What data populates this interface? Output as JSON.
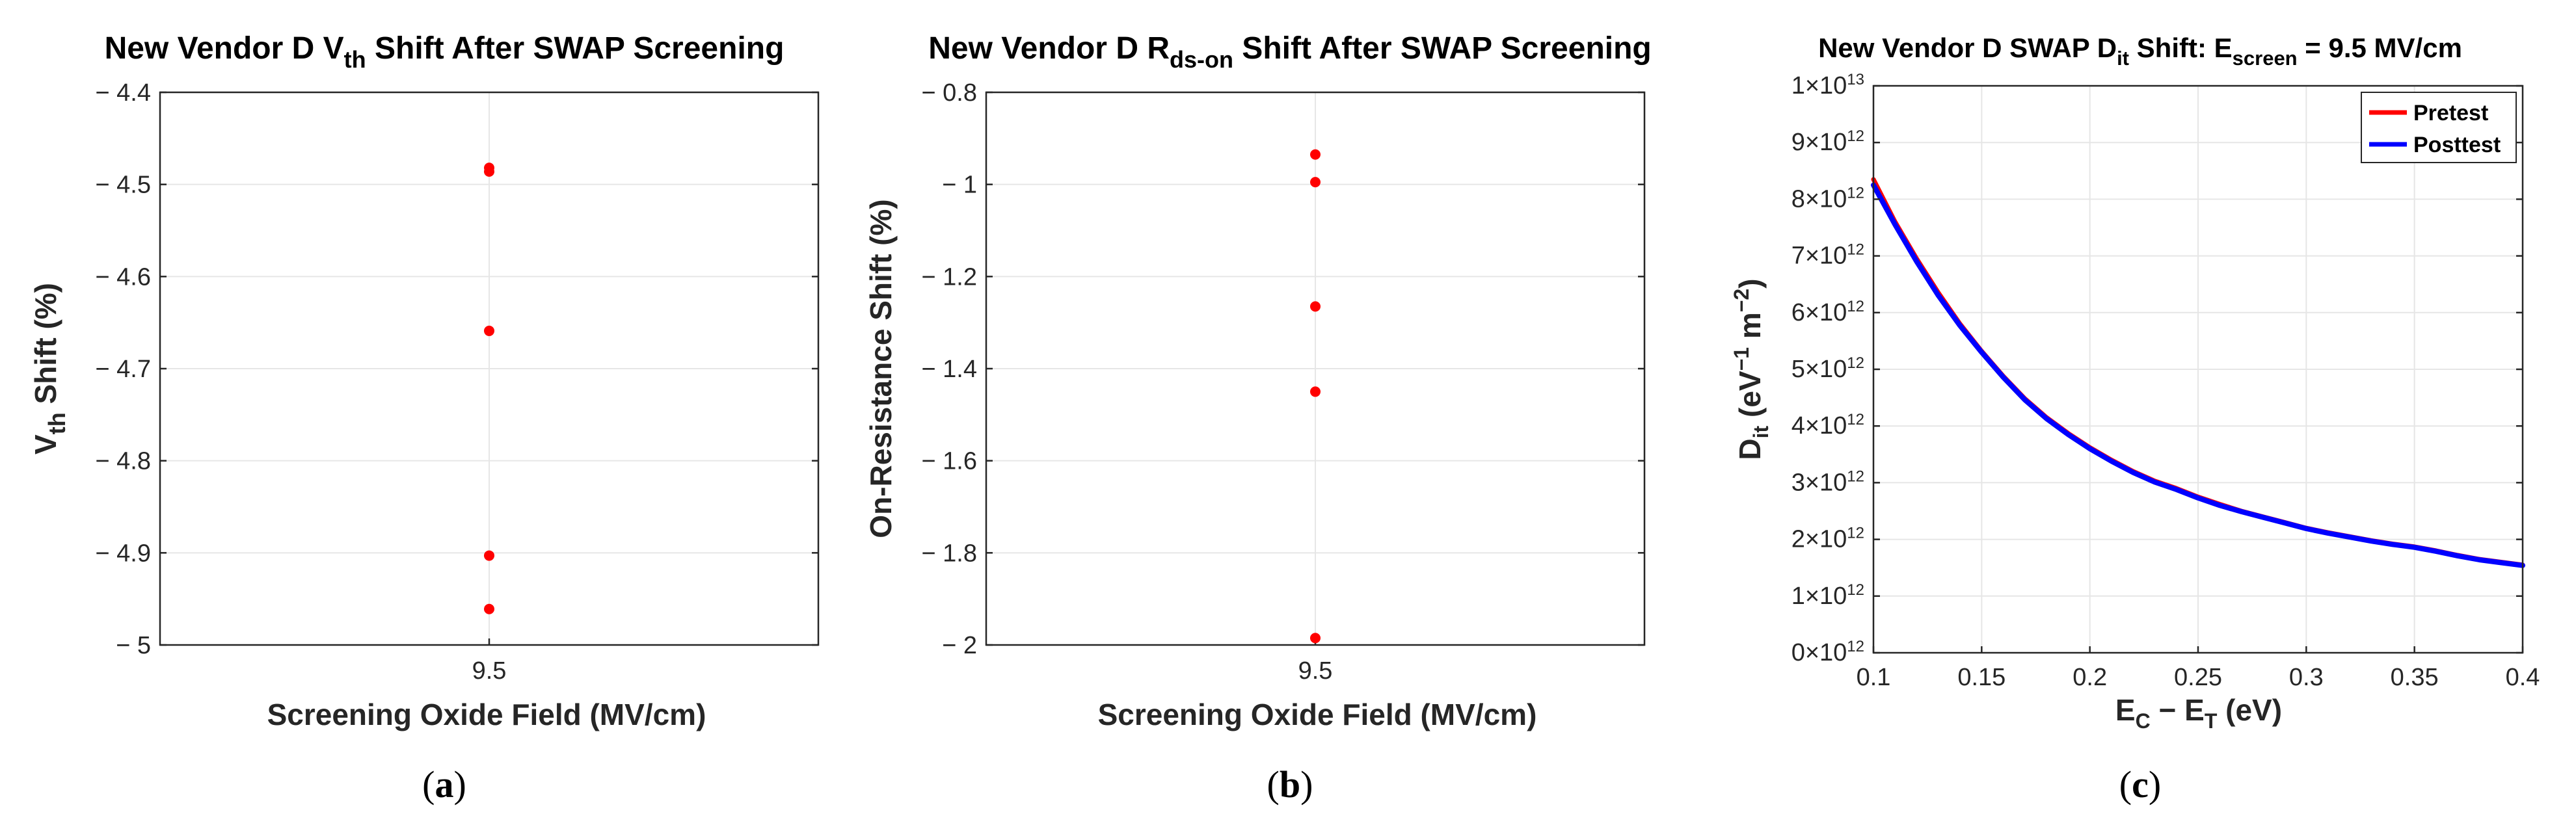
{
  "figure": {
    "captions": [
      "(a)",
      "(b)",
      "(c)"
    ]
  },
  "chart_data": [
    {
      "type": "scatter",
      "title": {
        "main": "New Vendor D V",
        "sub": "th",
        "rest": " Shift After SWAP Screening"
      },
      "xlabel": "Screening Oxide Field (MV/cm)",
      "ylabel": {
        "main": "V",
        "sub": "th",
        "rest": " Shift (%)"
      },
      "x_categories": [
        "9.5"
      ],
      "ylim": [
        -5,
        -4.4
      ],
      "yticks": [
        -4.4,
        -4.5,
        -4.6,
        -4.7,
        -4.8,
        -4.9,
        -5
      ],
      "ytick_labels": [
        "− 4.4",
        "− 4.5",
        "− 4.6",
        "− 4.7",
        "− 4.8",
        "− 4.9",
        "− 5"
      ],
      "y_inverted": true,
      "grid": true,
      "marker_color": "#ff0000",
      "points": [
        {
          "x": "9.5",
          "y": -4.482
        },
        {
          "x": "9.5",
          "y": -4.486
        },
        {
          "x": "9.5",
          "y": -4.659
        },
        {
          "x": "9.5",
          "y": -4.903
        },
        {
          "x": "9.5",
          "y": -4.961
        }
      ]
    },
    {
      "type": "scatter",
      "title": {
        "main": "New Vendor D R",
        "sub": "ds-on",
        "rest": " Shift After SWAP Screening"
      },
      "xlabel": "Screening Oxide Field (MV/cm)",
      "ylabel": {
        "main": "On-Resistance Shift (%)",
        "sub": "",
        "rest": ""
      },
      "x_categories": [
        "9.5"
      ],
      "ylim": [
        -2,
        -0.8
      ],
      "yticks": [
        -0.8,
        -1,
        -1.2,
        -1.4,
        -1.6,
        -1.8,
        -2
      ],
      "ytick_labels": [
        "− 0.8",
        "− 1",
        "− 1.2",
        "− 1.4",
        "− 1.6",
        "− 1.8",
        "− 2"
      ],
      "y_inverted": true,
      "grid": true,
      "marker_color": "#ff0000",
      "points": [
        {
          "x": "9.5",
          "y": -0.935
        },
        {
          "x": "9.5",
          "y": -0.995
        },
        {
          "x": "9.5",
          "y": -1.265
        },
        {
          "x": "9.5",
          "y": -1.45
        },
        {
          "x": "9.5",
          "y": -1.985
        }
      ]
    },
    {
      "type": "line",
      "title": {
        "pre": "New Vendor D SWAP D",
        "sub1": "it",
        "mid": " Shift: E",
        "sub2": "screen",
        "post": " = 9.5 MV/cm"
      },
      "xlabel": {
        "a": "E",
        "asub": "C",
        "op": " − E",
        "bsub": "T",
        "rest": " (eV)"
      },
      "ylabel": {
        "a": "D",
        "asub": "it",
        "b": " (eV",
        "sup1": "−1",
        "c": " m",
        "sup2": "−2",
        "d": ")"
      },
      "xlim": [
        0.1,
        0.4
      ],
      "xticks": [
        0.1,
        0.15,
        0.2,
        0.25,
        0.3,
        0.35,
        0.4
      ],
      "xtick_labels": [
        "0.1",
        "0.15",
        "0.2",
        "0.25",
        "0.3",
        "0.35",
        "0.4"
      ],
      "ylim": [
        0,
        10000000000000.0
      ],
      "yticks": [
        0,
        1,
        2,
        3,
        4,
        5,
        6,
        7,
        8,
        9,
        10
      ],
      "ytick_labels": [
        {
          "m": "0×10",
          "e": "12"
        },
        {
          "m": "1×10",
          "e": "12"
        },
        {
          "m": "2×10",
          "e": "12"
        },
        {
          "m": "3×10",
          "e": "12"
        },
        {
          "m": "4×10",
          "e": "12"
        },
        {
          "m": "5×10",
          "e": "12"
        },
        {
          "m": "6×10",
          "e": "12"
        },
        {
          "m": "7×10",
          "e": "12"
        },
        {
          "m": "8×10",
          "e": "12"
        },
        {
          "m": "9×10",
          "e": "12"
        },
        {
          "m": "1×10",
          "e": "13"
        }
      ],
      "grid": true,
      "legend_position": "top-right",
      "series": [
        {
          "name": "Pretest",
          "color": "#ff0000",
          "x": [
            0.1,
            0.11,
            0.12,
            0.13,
            0.14,
            0.15,
            0.16,
            0.17,
            0.18,
            0.19,
            0.2,
            0.21,
            0.22,
            0.23,
            0.24,
            0.25,
            0.26,
            0.27,
            0.28,
            0.29,
            0.3,
            0.31,
            0.32,
            0.33,
            0.34,
            0.35,
            0.36,
            0.37,
            0.38,
            0.39,
            0.4
          ],
          "y": [
            8350000000000.0,
            7600000000000.0,
            6950000000000.0,
            6350000000000.0,
            5800000000000.0,
            5320000000000.0,
            4880000000000.0,
            4480000000000.0,
            4150000000000.0,
            3870000000000.0,
            3620000000000.0,
            3400000000000.0,
            3200000000000.0,
            3030000000000.0,
            2900000000000.0,
            2750000000000.0,
            2620000000000.0,
            2500000000000.0,
            2400000000000.0,
            2300000000000.0,
            2200000000000.0,
            2120000000000.0,
            2050000000000.0,
            1980000000000.0,
            1920000000000.0,
            1870000000000.0,
            1800000000000.0,
            1720000000000.0,
            1650000000000.0,
            1600000000000.0,
            1550000000000.0
          ]
        },
        {
          "name": "Posttest",
          "color": "#0000ff",
          "x": [
            0.1,
            0.11,
            0.12,
            0.13,
            0.14,
            0.15,
            0.16,
            0.17,
            0.18,
            0.19,
            0.2,
            0.21,
            0.22,
            0.23,
            0.24,
            0.25,
            0.26,
            0.27,
            0.28,
            0.29,
            0.3,
            0.31,
            0.32,
            0.33,
            0.34,
            0.35,
            0.36,
            0.37,
            0.38,
            0.39,
            0.4
          ],
          "y": [
            8250000000000.0,
            7550000000000.0,
            6900000000000.0,
            6300000000000.0,
            5770000000000.0,
            5300000000000.0,
            4860000000000.0,
            4460000000000.0,
            4130000000000.0,
            3850000000000.0,
            3600000000000.0,
            3380000000000.0,
            3180000000000.0,
            3010000000000.0,
            2880000000000.0,
            2730000000000.0,
            2600000000000.0,
            2490000000000.0,
            2390000000000.0,
            2290000000000.0,
            2190000000000.0,
            2110000000000.0,
            2040000000000.0,
            1970000000000.0,
            1910000000000.0,
            1860000000000.0,
            1790000000000.0,
            1710000000000.0,
            1640000000000.0,
            1590000000000.0,
            1540000000000.0
          ]
        }
      ]
    }
  ]
}
